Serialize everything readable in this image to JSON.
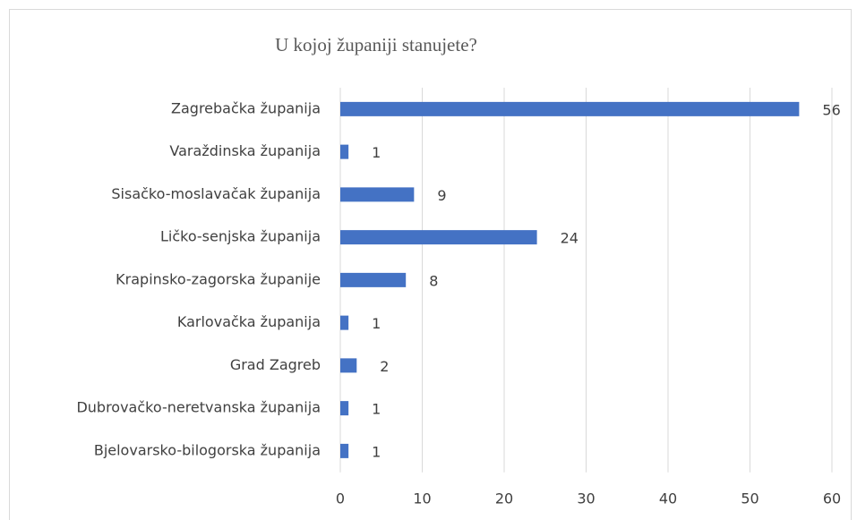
{
  "chart_data": {
    "type": "bar",
    "orientation": "horizontal",
    "title": "U kojoj županiji stanujete?",
    "categories": [
      "Zagrebačka županija",
      "Varaždinska županija",
      "Sisačko-moslavačak županija",
      "Ličko-senjska županija",
      "Krapinsko-zagorska županije",
      "Karlovačka županija",
      "Grad Zagreb",
      "Dubrovačko-neretvanska županija",
      "Bjelovarsko-bilogorska županija"
    ],
    "values": [
      56,
      1,
      9,
      24,
      8,
      1,
      2,
      1,
      1
    ],
    "color": "#4472c4",
    "xlim": [
      0,
      60
    ],
    "xticks": [
      0,
      10,
      20,
      30,
      40,
      50,
      60
    ],
    "grid": true
  }
}
